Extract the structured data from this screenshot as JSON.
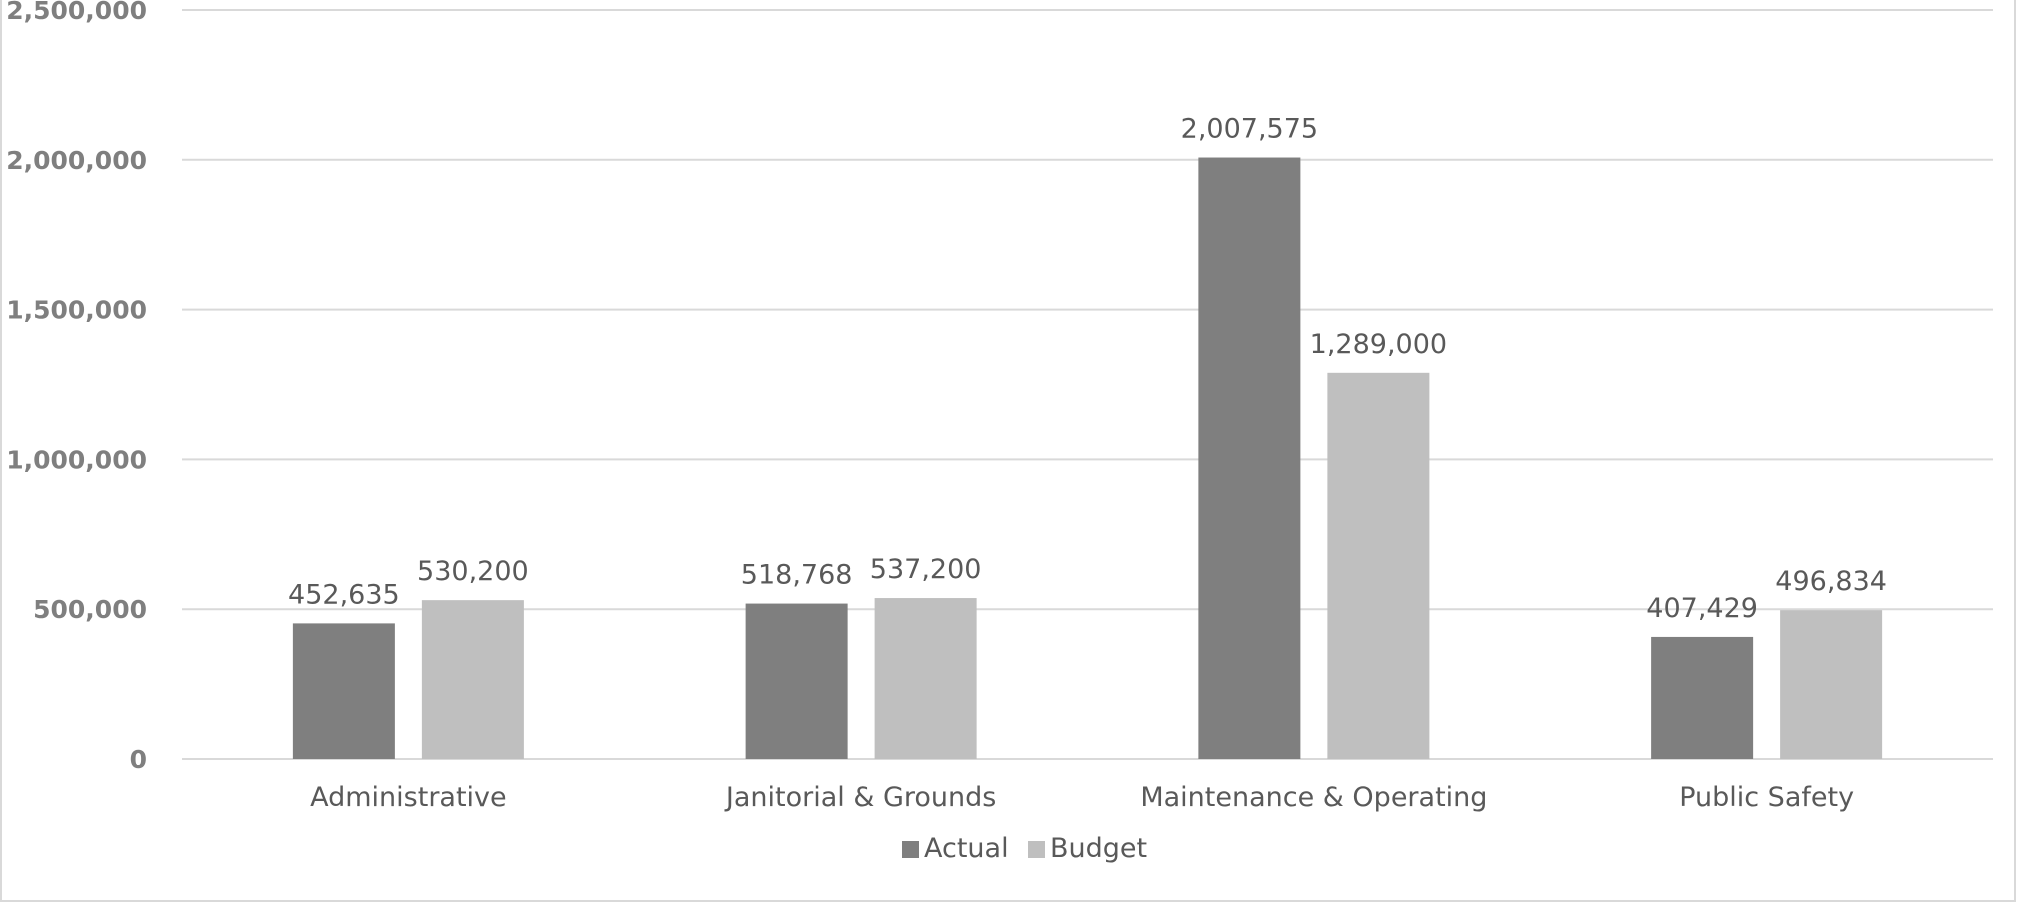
{
  "chart_data": {
    "type": "bar",
    "title": "",
    "xlabel": "",
    "ylabel": "",
    "categories": [
      "Administrative",
      "Janitorial & Grounds",
      "Maintenance & Operating",
      "Public Safety"
    ],
    "series": [
      {
        "name": "Actual",
        "values": [
          452635,
          518768,
          2007575,
          407429
        ],
        "color": "#7f7f7f",
        "labels": [
          "452,635",
          "518,768",
          "2,007,575",
          "407,429"
        ]
      },
      {
        "name": "Budget",
        "values": [
          530200,
          537200,
          1289000,
          496834
        ],
        "color": "#bfbfbf",
        "labels": [
          "530,200",
          "537,200",
          "1,289,000",
          "496,834"
        ]
      }
    ],
    "ylim": [
      0,
      2500000
    ],
    "yticks": [
      0,
      500000,
      1000000,
      1500000,
      2000000,
      2500000
    ],
    "ytick_labels": [
      "0",
      "500,000",
      "1,000,000",
      "1,500,000",
      "2,000,000",
      "2,500,000"
    ],
    "grid": true,
    "legend": "bottom-center",
    "gridline_color": "#d9d9d9"
  }
}
